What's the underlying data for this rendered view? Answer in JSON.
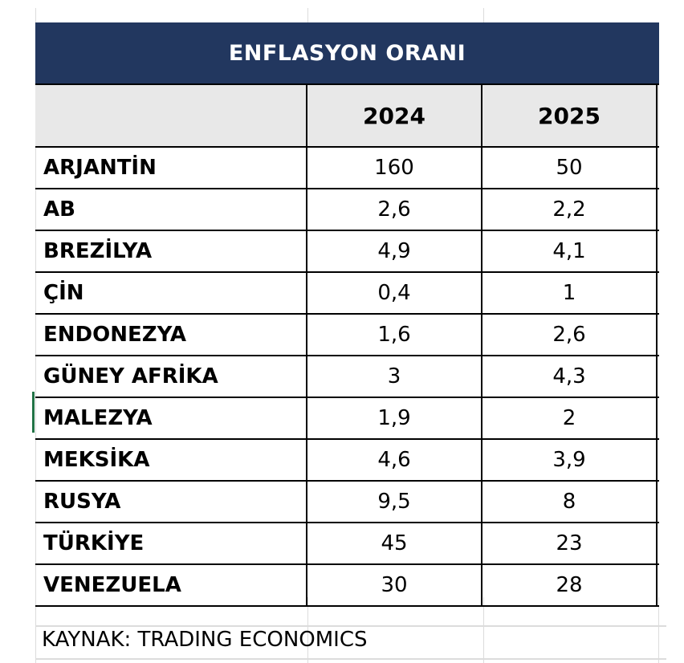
{
  "table": {
    "title": "ENFLASYON ORANI",
    "header_color": "#22375f",
    "columns": [
      "",
      "2024",
      "2025"
    ],
    "rows": [
      {
        "country": "ARJANTİN",
        "y2024": "160",
        "y2025": "50"
      },
      {
        "country": "AB",
        "y2024": "2,6",
        "y2025": "2,2"
      },
      {
        "country": "BREZİLYA",
        "y2024": "4,9",
        "y2025": "4,1"
      },
      {
        "country": "ÇİN",
        "y2024": "0,4",
        "y2025": "1"
      },
      {
        "country": "ENDONEZYA",
        "y2024": "1,6",
        "y2025": "2,6"
      },
      {
        "country": "GÜNEY AFRİKA",
        "y2024": "3",
        "y2025": "4,3"
      },
      {
        "country": "MALEZYA",
        "y2024": "1,9",
        "y2025": "2"
      },
      {
        "country": "MEKSİKA",
        "y2024": "4,6",
        "y2025": "3,9"
      },
      {
        "country": "RUSYA",
        "y2024": "9,5",
        "y2025": "8"
      },
      {
        "country": "TÜRKİYE",
        "y2024": "45",
        "y2025": "23"
      },
      {
        "country": "VENEZUELA",
        "y2024": "30",
        "y2025": "28"
      }
    ]
  },
  "source": "KAYNAK: TRADING ECONOMICS"
}
